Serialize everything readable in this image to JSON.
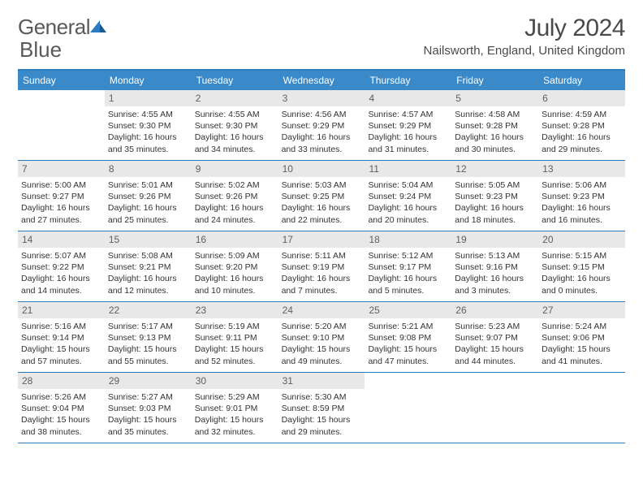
{
  "logo": {
    "text1": "General",
    "text2": "Blue"
  },
  "title": "July 2024",
  "location": "Nailsworth, England, United Kingdom",
  "colors": {
    "header_bg": "#3a8ac9",
    "header_border": "#2b7cc0",
    "daynum_bg": "#e8e8e8",
    "text": "#333333"
  },
  "day_names": [
    "Sunday",
    "Monday",
    "Tuesday",
    "Wednesday",
    "Thursday",
    "Friday",
    "Saturday"
  ],
  "weeks": [
    [
      {
        "n": "",
        "sr": "",
        "ss": "",
        "dl": ""
      },
      {
        "n": "1",
        "sr": "Sunrise: 4:55 AM",
        "ss": "Sunset: 9:30 PM",
        "dl": "Daylight: 16 hours and 35 minutes."
      },
      {
        "n": "2",
        "sr": "Sunrise: 4:55 AM",
        "ss": "Sunset: 9:30 PM",
        "dl": "Daylight: 16 hours and 34 minutes."
      },
      {
        "n": "3",
        "sr": "Sunrise: 4:56 AM",
        "ss": "Sunset: 9:29 PM",
        "dl": "Daylight: 16 hours and 33 minutes."
      },
      {
        "n": "4",
        "sr": "Sunrise: 4:57 AM",
        "ss": "Sunset: 9:29 PM",
        "dl": "Daylight: 16 hours and 31 minutes."
      },
      {
        "n": "5",
        "sr": "Sunrise: 4:58 AM",
        "ss": "Sunset: 9:28 PM",
        "dl": "Daylight: 16 hours and 30 minutes."
      },
      {
        "n": "6",
        "sr": "Sunrise: 4:59 AM",
        "ss": "Sunset: 9:28 PM",
        "dl": "Daylight: 16 hours and 29 minutes."
      }
    ],
    [
      {
        "n": "7",
        "sr": "Sunrise: 5:00 AM",
        "ss": "Sunset: 9:27 PM",
        "dl": "Daylight: 16 hours and 27 minutes."
      },
      {
        "n": "8",
        "sr": "Sunrise: 5:01 AM",
        "ss": "Sunset: 9:26 PM",
        "dl": "Daylight: 16 hours and 25 minutes."
      },
      {
        "n": "9",
        "sr": "Sunrise: 5:02 AM",
        "ss": "Sunset: 9:26 PM",
        "dl": "Daylight: 16 hours and 24 minutes."
      },
      {
        "n": "10",
        "sr": "Sunrise: 5:03 AM",
        "ss": "Sunset: 9:25 PM",
        "dl": "Daylight: 16 hours and 22 minutes."
      },
      {
        "n": "11",
        "sr": "Sunrise: 5:04 AM",
        "ss": "Sunset: 9:24 PM",
        "dl": "Daylight: 16 hours and 20 minutes."
      },
      {
        "n": "12",
        "sr": "Sunrise: 5:05 AM",
        "ss": "Sunset: 9:23 PM",
        "dl": "Daylight: 16 hours and 18 minutes."
      },
      {
        "n": "13",
        "sr": "Sunrise: 5:06 AM",
        "ss": "Sunset: 9:23 PM",
        "dl": "Daylight: 16 hours and 16 minutes."
      }
    ],
    [
      {
        "n": "14",
        "sr": "Sunrise: 5:07 AM",
        "ss": "Sunset: 9:22 PM",
        "dl": "Daylight: 16 hours and 14 minutes."
      },
      {
        "n": "15",
        "sr": "Sunrise: 5:08 AM",
        "ss": "Sunset: 9:21 PM",
        "dl": "Daylight: 16 hours and 12 minutes."
      },
      {
        "n": "16",
        "sr": "Sunrise: 5:09 AM",
        "ss": "Sunset: 9:20 PM",
        "dl": "Daylight: 16 hours and 10 minutes."
      },
      {
        "n": "17",
        "sr": "Sunrise: 5:11 AM",
        "ss": "Sunset: 9:19 PM",
        "dl": "Daylight: 16 hours and 7 minutes."
      },
      {
        "n": "18",
        "sr": "Sunrise: 5:12 AM",
        "ss": "Sunset: 9:17 PM",
        "dl": "Daylight: 16 hours and 5 minutes."
      },
      {
        "n": "19",
        "sr": "Sunrise: 5:13 AM",
        "ss": "Sunset: 9:16 PM",
        "dl": "Daylight: 16 hours and 3 minutes."
      },
      {
        "n": "20",
        "sr": "Sunrise: 5:15 AM",
        "ss": "Sunset: 9:15 PM",
        "dl": "Daylight: 16 hours and 0 minutes."
      }
    ],
    [
      {
        "n": "21",
        "sr": "Sunrise: 5:16 AM",
        "ss": "Sunset: 9:14 PM",
        "dl": "Daylight: 15 hours and 57 minutes."
      },
      {
        "n": "22",
        "sr": "Sunrise: 5:17 AM",
        "ss": "Sunset: 9:13 PM",
        "dl": "Daylight: 15 hours and 55 minutes."
      },
      {
        "n": "23",
        "sr": "Sunrise: 5:19 AM",
        "ss": "Sunset: 9:11 PM",
        "dl": "Daylight: 15 hours and 52 minutes."
      },
      {
        "n": "24",
        "sr": "Sunrise: 5:20 AM",
        "ss": "Sunset: 9:10 PM",
        "dl": "Daylight: 15 hours and 49 minutes."
      },
      {
        "n": "25",
        "sr": "Sunrise: 5:21 AM",
        "ss": "Sunset: 9:08 PM",
        "dl": "Daylight: 15 hours and 47 minutes."
      },
      {
        "n": "26",
        "sr": "Sunrise: 5:23 AM",
        "ss": "Sunset: 9:07 PM",
        "dl": "Daylight: 15 hours and 44 minutes."
      },
      {
        "n": "27",
        "sr": "Sunrise: 5:24 AM",
        "ss": "Sunset: 9:06 PM",
        "dl": "Daylight: 15 hours and 41 minutes."
      }
    ],
    [
      {
        "n": "28",
        "sr": "Sunrise: 5:26 AM",
        "ss": "Sunset: 9:04 PM",
        "dl": "Daylight: 15 hours and 38 minutes."
      },
      {
        "n": "29",
        "sr": "Sunrise: 5:27 AM",
        "ss": "Sunset: 9:03 PM",
        "dl": "Daylight: 15 hours and 35 minutes."
      },
      {
        "n": "30",
        "sr": "Sunrise: 5:29 AM",
        "ss": "Sunset: 9:01 PM",
        "dl": "Daylight: 15 hours and 32 minutes."
      },
      {
        "n": "31",
        "sr": "Sunrise: 5:30 AM",
        "ss": "Sunset: 8:59 PM",
        "dl": "Daylight: 15 hours and 29 minutes."
      },
      {
        "n": "",
        "sr": "",
        "ss": "",
        "dl": ""
      },
      {
        "n": "",
        "sr": "",
        "ss": "",
        "dl": ""
      },
      {
        "n": "",
        "sr": "",
        "ss": "",
        "dl": ""
      }
    ]
  ]
}
